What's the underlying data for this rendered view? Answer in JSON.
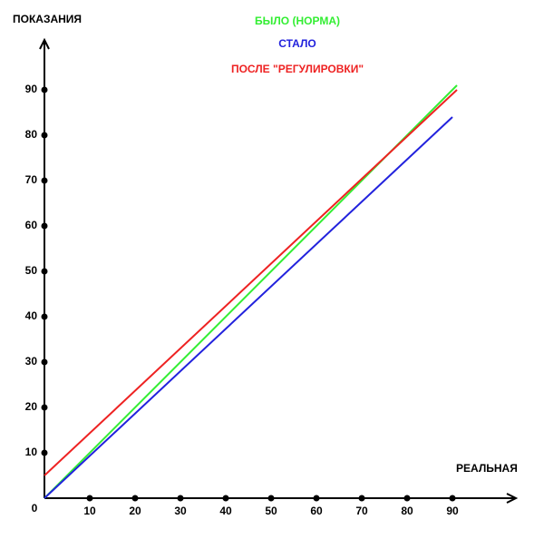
{
  "chart_data": {
    "type": "line",
    "y_label": "ПОКАЗАНИЯ",
    "x_label": "РЕАЛЬНАЯ",
    "xlim": [
      0,
      104
    ],
    "ylim": [
      0,
      101
    ],
    "xticks": [
      0,
      10,
      20,
      30,
      40,
      50,
      60,
      70,
      80,
      90
    ],
    "yticks": [
      10,
      20,
      30,
      40,
      50,
      60,
      70,
      80,
      90
    ],
    "series": [
      {
        "name": "БЫЛО (НОРМА)",
        "color": "#33ee33",
        "x": [
          0,
          91
        ],
        "values": [
          0,
          91
        ]
      },
      {
        "name": "СТАЛО",
        "color": "#2222dd",
        "x": [
          0,
          90
        ],
        "values": [
          0,
          84
        ]
      },
      {
        "name": "ПОСЛЕ \"РЕГУЛИРОВКИ\"",
        "color": "#ee2222",
        "x": [
          0,
          91
        ],
        "values": [
          5,
          90
        ]
      }
    ]
  }
}
